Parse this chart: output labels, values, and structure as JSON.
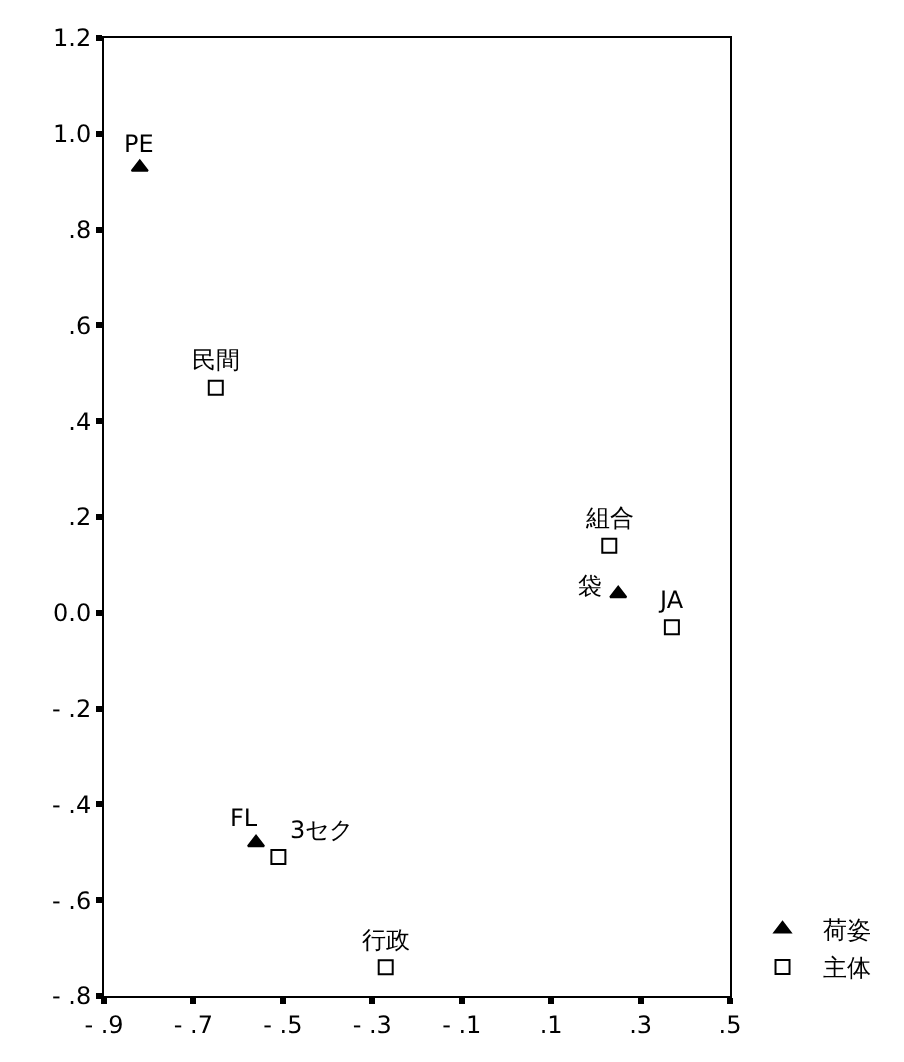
{
  "chart_data": {
    "type": "scatter",
    "legend": "bottom right",
    "xlim": [
      -0.9,
      0.5
    ],
    "ylim": [
      -0.8,
      1.2
    ],
    "xticks": [
      {
        "value": -0.9,
        "label": "- .9"
      },
      {
        "value": -0.7,
        "label": "- .7"
      },
      {
        "value": -0.5,
        "label": "- .5"
      },
      {
        "value": -0.3,
        "label": "- .3"
      },
      {
        "value": -0.1,
        "label": "- .1"
      },
      {
        "value": 0.1,
        "label": ".1"
      },
      {
        "value": 0.3,
        "label": ".3"
      },
      {
        "value": 0.5,
        "label": ".5"
      }
    ],
    "yticks": [
      {
        "value": -0.8,
        "label": "- .8"
      },
      {
        "value": -0.6,
        "label": "- .6"
      },
      {
        "value": -0.4,
        "label": "- .4"
      },
      {
        "value": -0.2,
        "label": "- .2"
      },
      {
        "value": 0,
        "label": "0.0"
      },
      {
        "value": 0.2,
        "label": ".2"
      },
      {
        "value": 0.4,
        "label": ".4"
      },
      {
        "value": 0.6,
        "label": ".6"
      },
      {
        "value": 0.8,
        "label": ".8"
      },
      {
        "value": 1,
        "label": "1.0"
      },
      {
        "value": 1.2,
        "label": "1.2"
      }
    ],
    "series": [
      {
        "name": "荷姿",
        "color": "#000000",
        "marker": "triangle",
        "x": [
          -0.82,
          0.25,
          -0.56
        ],
        "values": [
          0.93,
          0.04,
          -0.48
        ]
      },
      {
        "name": "主体",
        "color": "#000000",
        "marker": "square",
        "x": [
          -0.65,
          0.23,
          0.37,
          -0.51,
          -0.27
        ],
        "values": [
          0.47,
          0.14,
          -0.03,
          -0.51,
          -0.74
        ]
      }
    ],
    "annotations": [
      {
        "text": "PE",
        "x": -0.82,
        "y": 0.93
      },
      {
        "text": "袋",
        "x": 0.25,
        "y": 0.04
      },
      {
        "text": "FL",
        "x": -0.56,
        "y": -0.48
      },
      {
        "text": "民間",
        "x": -0.65,
        "y": 0.47
      },
      {
        "text": "組合",
        "x": 0.23,
        "y": 0.14
      },
      {
        "text": "JA",
        "x": 0.37,
        "y": -0.03
      },
      {
        "text": "3セク",
        "x": -0.51,
        "y": -0.51
      },
      {
        "text": "行政",
        "x": -0.27,
        "y": -0.74
      }
    ]
  }
}
